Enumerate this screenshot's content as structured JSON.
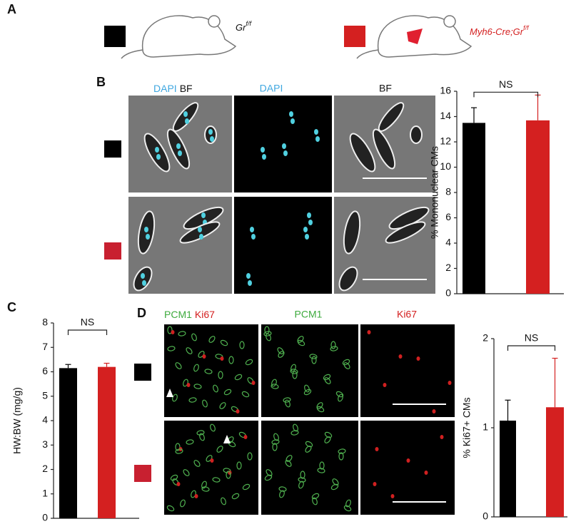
{
  "panel_labels": [
    "A",
    "B",
    "C",
    "D"
  ],
  "genotypes": {
    "control": "Gr",
    "control_sup": "f/f",
    "mutant": "Myh6-Cre;Gr",
    "mutant_sup": "f/f"
  },
  "image_labels_b": [
    "DAPI",
    "BF",
    "DAPI",
    "BF"
  ],
  "image_labels_d": [
    "PCM1",
    "Ki67",
    "PCM1",
    "Ki67"
  ],
  "chart_data": [
    {
      "type": "bar",
      "ylabel": "% Mononuclear CMs",
      "annotation": "NS",
      "values": [
        13.5,
        13.7
      ],
      "errors": [
        1.2,
        2.0
      ],
      "colors": [
        "#000000",
        "#d42020"
      ],
      "ylim": [
        0,
        16
      ],
      "yticks": [
        0,
        2,
        4,
        6,
        8,
        10,
        12,
        14,
        16
      ]
    },
    {
      "type": "bar",
      "ylabel": "HW:BW (mg/g)",
      "annotation": "NS",
      "values": [
        6.15,
        6.2
      ],
      "errors": [
        0.15,
        0.15
      ],
      "colors": [
        "#000000",
        "#d42020"
      ],
      "ylim": [
        0,
        8
      ],
      "yticks": [
        0,
        1,
        2,
        3,
        4,
        5,
        6,
        7,
        8
      ]
    },
    {
      "type": "bar",
      "ylabel": "% Ki67+ CMs",
      "annotation": "NS",
      "values": [
        1.08,
        1.23
      ],
      "errors": [
        0.23,
        0.55
      ],
      "colors": [
        "#000000",
        "#d42020"
      ],
      "ylim": [
        0,
        2
      ],
      "yticks": [
        0,
        1,
        2
      ]
    }
  ]
}
